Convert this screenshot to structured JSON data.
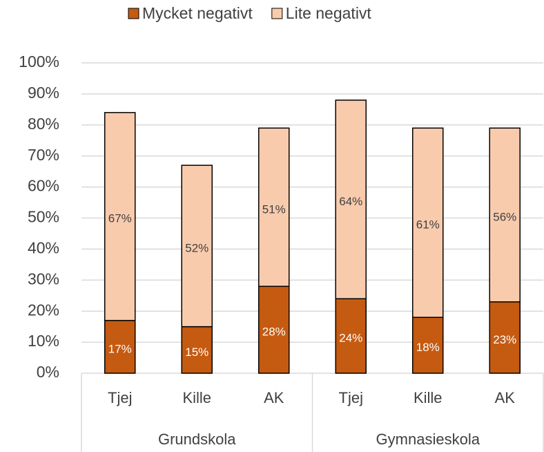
{
  "chart_data": {
    "type": "stacked_bar",
    "groups": [
      {
        "name": "Grundskola",
        "categories": [
          "Tjej",
          "Kille",
          "AK"
        ]
      },
      {
        "name": "Gymnasieskola",
        "categories": [
          "Tjej",
          "Kille",
          "AK"
        ]
      }
    ],
    "series": [
      {
        "name": "Mycket negativt",
        "color": "#c55a11",
        "label_color": "#ffffff",
        "values": [
          17,
          15,
          28,
          24,
          18,
          23
        ],
        "value_labels": [
          "17%",
          "15%",
          "28%",
          "24%",
          "18%",
          "23%"
        ]
      },
      {
        "name": "Lite negativt",
        "color": "#f8cbad",
        "label_color": "#404040",
        "values": [
          67,
          52,
          51,
          64,
          61,
          56
        ],
        "value_labels": [
          "67%",
          "52%",
          "51%",
          "64%",
          "61%",
          "56%"
        ]
      }
    ],
    "ylim": [
      0,
      100
    ],
    "yticks": [
      {
        "value": 0,
        "label": "0%"
      },
      {
        "value": 10,
        "label": "10%"
      },
      {
        "value": 20,
        "label": "20%"
      },
      {
        "value": 30,
        "label": "30%"
      },
      {
        "value": 40,
        "label": "40%"
      },
      {
        "value": 50,
        "label": "50%"
      },
      {
        "value": 60,
        "label": "60%"
      },
      {
        "value": 70,
        "label": "70%"
      },
      {
        "value": 80,
        "label": "80%"
      },
      {
        "value": 90,
        "label": "90%"
      },
      {
        "value": 100,
        "label": "100%"
      }
    ],
    "grid": true,
    "legend": "top"
  }
}
